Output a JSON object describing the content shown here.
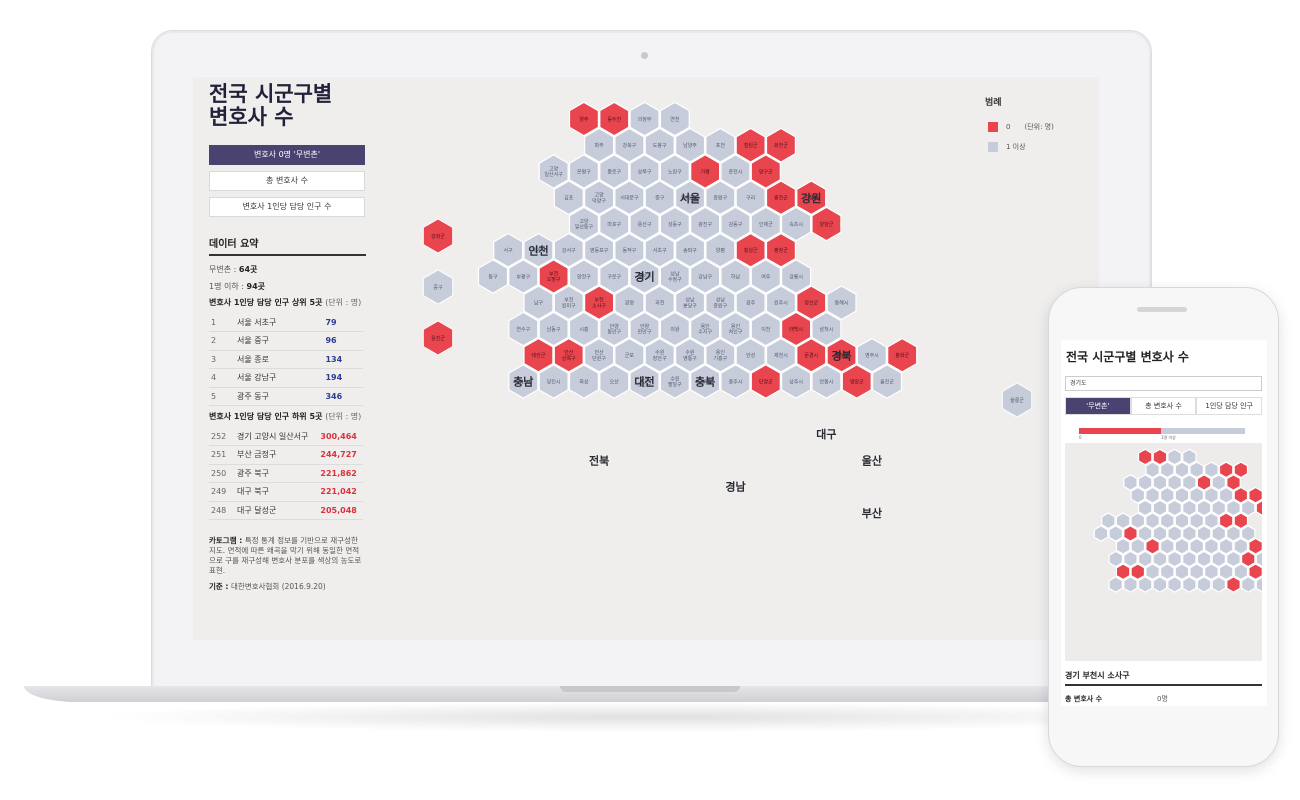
{
  "colors": {
    "zero": "#e8454f",
    "oneplus": "#c7ccdb",
    "accent": "#4a4270"
  },
  "sidebar": {
    "title": "전국 시군구별\n변호사 수",
    "buttons": [
      "변호사 0명 '무변촌'",
      "총 변호사 수",
      "변호사 1인당 담당 인구 수"
    ],
    "summary_title": "데이터 요약",
    "no_lawyer_label": "무변촌 : ",
    "no_lawyer_value": "64곳",
    "one_or_less_label": "1명 이하 : ",
    "one_or_less_value": "94곳",
    "top5_title": "변호사 1인당 담당 인구 상위 5곳",
    "top5_unit": "(단위 : 명)",
    "top5": [
      {
        "rank": "1",
        "name": "서울 서초구",
        "value": "79"
      },
      {
        "rank": "2",
        "name": "서울 중구",
        "value": "96"
      },
      {
        "rank": "3",
        "name": "서울 종로",
        "value": "134"
      },
      {
        "rank": "4",
        "name": "서울 강남구",
        "value": "194"
      },
      {
        "rank": "5",
        "name": "광주 동구",
        "value": "346"
      }
    ],
    "bottom5_title": "변호사 1인당 담당 인구 하위 5곳",
    "bottom5_unit": "(단위 : 명)",
    "bottom5": [
      {
        "rank": "252",
        "name": "경기 고양시 일산서구",
        "value": "300,464"
      },
      {
        "rank": "251",
        "name": "부산 금정구",
        "value": "244,727"
      },
      {
        "rank": "250",
        "name": "광주 북구",
        "value": "221,862"
      },
      {
        "rank": "249",
        "name": "대구 북구",
        "value": "221,042"
      },
      {
        "rank": "248",
        "name": "대구 달성군",
        "value": "205,048"
      }
    ],
    "note_label": "카토그램 : ",
    "note_text": "특정 통계 정보를 기반으로 재구성한 지도. 면적에 따른 왜곡을 막기 위해 동일한 면적으로 구를 재구성해 변호사 분포를 색상의 농도로 표현.",
    "source_label": "기준 : ",
    "source_text": "대한변호사협회 (2016.9.20)"
  },
  "legend": {
    "title": "범례",
    "zero_label": "0",
    "unit": "(단위: 명)",
    "oneplus_label": "1 이상"
  },
  "regions": [
    {
      "name": "서울",
      "col": 6,
      "row": 3
    },
    {
      "name": "인천",
      "col": 1,
      "row": 5
    },
    {
      "name": "경기",
      "col": 5,
      "row": 6
    },
    {
      "name": "강원",
      "col": 10,
      "row": 3
    },
    {
      "name": "충북",
      "col": 7,
      "row": 10
    },
    {
      "name": "충남",
      "col": 1,
      "row": 10
    },
    {
      "name": "대전",
      "col": 5,
      "row": 10
    },
    {
      "name": "경북",
      "col": 11,
      "row": 9
    },
    {
      "name": "대구",
      "col": 11,
      "row": 12
    },
    {
      "name": "울산",
      "col": 12,
      "row": 13
    },
    {
      "name": "전북",
      "col": 3,
      "row": 13
    },
    {
      "name": "경남",
      "col": 8,
      "row": 14
    },
    {
      "name": "부산",
      "col": 12,
      "row": 15
    }
  ],
  "hexes": [
    {
      "n": "양주",
      "c": 3,
      "r": 0,
      "z": 1
    },
    {
      "n": "동두천",
      "c": 4,
      "r": 0,
      "z": 1
    },
    {
      "n": "의정부",
      "c": 5,
      "r": 0,
      "z": 0
    },
    {
      "n": "연천",
      "c": 6,
      "r": 0,
      "z": 0
    },
    {
      "n": "파주",
      "c": 3,
      "r": 1,
      "z": 0
    },
    {
      "n": "강북구",
      "c": 4,
      "r": 1,
      "z": 0
    },
    {
      "n": "도봉구",
      "c": 5,
      "r": 1,
      "z": 0
    },
    {
      "n": "남양주",
      "c": 6,
      "r": 1,
      "z": 0
    },
    {
      "n": "포천",
      "c": 7,
      "r": 1,
      "z": 0
    },
    {
      "n": "철원군",
      "c": 8,
      "r": 1,
      "z": 1
    },
    {
      "n": "화천군",
      "c": 9,
      "r": 1,
      "z": 1
    },
    {
      "n": "고양\n일산서구",
      "c": 2,
      "r": 2,
      "z": 0
    },
    {
      "n": "은평구",
      "c": 3,
      "r": 2,
      "z": 0
    },
    {
      "n": "종로구",
      "c": 4,
      "r": 2,
      "z": 0
    },
    {
      "n": "성북구",
      "c": 5,
      "r": 2,
      "z": 0
    },
    {
      "n": "노원구",
      "c": 6,
      "r": 2,
      "z": 0
    },
    {
      "n": "가평",
      "c": 7,
      "r": 2,
      "z": 1
    },
    {
      "n": "춘천시",
      "c": 8,
      "r": 2,
      "z": 0
    },
    {
      "n": "양구군",
      "c": 9,
      "r": 2,
      "z": 1
    },
    {
      "n": "김포",
      "c": 2,
      "r": 3,
      "z": 0
    },
    {
      "n": "고양\n덕양구",
      "c": 3,
      "r": 3,
      "z": 0
    },
    {
      "n": "서대문구",
      "c": 4,
      "r": 3,
      "z": 0
    },
    {
      "n": "중구",
      "c": 5,
      "r": 3,
      "z": 0
    },
    {
      "n": "동대문구",
      "c": 6,
      "r": 3,
      "z": 0
    },
    {
      "n": "중랑구",
      "c": 7,
      "r": 3,
      "z": 0
    },
    {
      "n": "구리",
      "c": 8,
      "r": 3,
      "z": 0
    },
    {
      "n": "홍천군",
      "c": 9,
      "r": 3,
      "z": 1
    },
    {
      "n": "고성군",
      "c": 10,
      "r": 3,
      "z": 1
    },
    {
      "n": "고양\n일산동구",
      "c": 3,
      "r": 4,
      "z": 0
    },
    {
      "n": "마포구",
      "c": 4,
      "r": 4,
      "z": 0
    },
    {
      "n": "용산구",
      "c": 5,
      "r": 4,
      "z": 0
    },
    {
      "n": "성동구",
      "c": 6,
      "r": 4,
      "z": 0
    },
    {
      "n": "광진구",
      "c": 7,
      "r": 4,
      "z": 0
    },
    {
      "n": "강동구",
      "c": 8,
      "r": 4,
      "z": 0
    },
    {
      "n": "인제군",
      "c": 9,
      "r": 4,
      "z": 0
    },
    {
      "n": "속초시",
      "c": 10,
      "r": 4,
      "z": 0
    },
    {
      "n": "양양군",
      "c": 11,
      "r": 4,
      "z": 1
    },
    {
      "n": "서구",
      "c": 0,
      "r": 5,
      "z": 0
    },
    {
      "n": "계양구",
      "c": 1,
      "r": 5,
      "z": 0
    },
    {
      "n": "강서구",
      "c": 2,
      "r": 5,
      "z": 0
    },
    {
      "n": "영등포구",
      "c": 3,
      "r": 5,
      "z": 0
    },
    {
      "n": "동작구",
      "c": 4,
      "r": 5,
      "z": 0
    },
    {
      "n": "서초구",
      "c": 5,
      "r": 5,
      "z": 0
    },
    {
      "n": "송파구",
      "c": 6,
      "r": 5,
      "z": 0
    },
    {
      "n": "양평",
      "c": 7,
      "r": 5,
      "z": 0
    },
    {
      "n": "횡성군",
      "c": 8,
      "r": 5,
      "z": 1
    },
    {
      "n": "평창군",
      "c": 9,
      "r": 5,
      "z": 1
    },
    {
      "n": "동구",
      "c": 0,
      "r": 6,
      "z": 0
    },
    {
      "n": "부평구",
      "c": 1,
      "r": 6,
      "z": 0
    },
    {
      "n": "부천\n오정구",
      "c": 2,
      "r": 6,
      "z": 1
    },
    {
      "n": "양천구",
      "c": 3,
      "r": 6,
      "z": 0
    },
    {
      "n": "구로구",
      "c": 4,
      "r": 6,
      "z": 0
    },
    {
      "n": "금천구",
      "c": 5,
      "r": 6,
      "z": 0
    },
    {
      "n": "성남\n수정구",
      "c": 6,
      "r": 6,
      "z": 0
    },
    {
      "n": "강남구",
      "c": 7,
      "r": 6,
      "z": 0
    },
    {
      "n": "하남",
      "c": 8,
      "r": 6,
      "z": 0
    },
    {
      "n": "여주",
      "c": 9,
      "r": 6,
      "z": 0
    },
    {
      "n": "강릉시",
      "c": 10,
      "r": 6,
      "z": 0
    },
    {
      "n": "남구",
      "c": 1,
      "r": 7,
      "z": 0
    },
    {
      "n": "부천\n원미구",
      "c": 2,
      "r": 7,
      "z": 0
    },
    {
      "n": "부천\n소사구",
      "c": 3,
      "r": 7,
      "z": 1
    },
    {
      "n": "광명",
      "c": 4,
      "r": 7,
      "z": 0
    },
    {
      "n": "과천",
      "c": 5,
      "r": 7,
      "z": 0
    },
    {
      "n": "성남\n분당구",
      "c": 6,
      "r": 7,
      "z": 0
    },
    {
      "n": "성남\n중원구",
      "c": 7,
      "r": 7,
      "z": 0
    },
    {
      "n": "광주",
      "c": 8,
      "r": 7,
      "z": 0
    },
    {
      "n": "원주시",
      "c": 9,
      "r": 7,
      "z": 0
    },
    {
      "n": "정선군",
      "c": 10,
      "r": 7,
      "z": 1
    },
    {
      "n": "동해시",
      "c": 11,
      "r": 7,
      "z": 0
    },
    {
      "n": "연수구",
      "c": 1,
      "r": 8,
      "z": 0
    },
    {
      "n": "남동구",
      "c": 2,
      "r": 8,
      "z": 0
    },
    {
      "n": "시흥",
      "c": 3,
      "r": 8,
      "z": 0
    },
    {
      "n": "안양\n동안구",
      "c": 4,
      "r": 8,
      "z": 0
    },
    {
      "n": "안양\n만안구",
      "c": 5,
      "r": 8,
      "z": 0
    },
    {
      "n": "의왕",
      "c": 6,
      "r": 8,
      "z": 0
    },
    {
      "n": "용인\n수지구",
      "c": 7,
      "r": 8,
      "z": 0
    },
    {
      "n": "용인\n처인구",
      "c": 8,
      "r": 8,
      "z": 0
    },
    {
      "n": "이천",
      "c": 9,
      "r": 8,
      "z": 0
    },
    {
      "n": "태백시",
      "c": 10,
      "r": 8,
      "z": 1
    },
    {
      "n": "삼척시",
      "c": 11,
      "r": 8,
      "z": 0
    },
    {
      "n": "태안군",
      "c": 1,
      "r": 9,
      "z": 1
    },
    {
      "n": "안산\n상록구",
      "c": 2,
      "r": 9,
      "z": 1
    },
    {
      "n": "안산\n단원구",
      "c": 3,
      "r": 9,
      "z": 0
    },
    {
      "n": "군포",
      "c": 4,
      "r": 9,
      "z": 0
    },
    {
      "n": "수원\n장안구",
      "c": 5,
      "r": 9,
      "z": 0
    },
    {
      "n": "수원\n영통구",
      "c": 6,
      "r": 9,
      "z": 0
    },
    {
      "n": "용인\n기흥구",
      "c": 7,
      "r": 9,
      "z": 0
    },
    {
      "n": "안성",
      "c": 8,
      "r": 9,
      "z": 0
    },
    {
      "n": "제천시",
      "c": 9,
      "r": 9,
      "z": 0
    },
    {
      "n": "문경시",
      "c": 10,
      "r": 9,
      "z": 1
    },
    {
      "n": "예천군",
      "c": 11,
      "r": 9,
      "z": 1
    },
    {
      "n": "영주시",
      "c": 12,
      "r": 9,
      "z": 0
    },
    {
      "n": "봉화군",
      "c": 13,
      "r": 9,
      "z": 1
    },
    {
      "n": "서산시",
      "c": 1,
      "r": 10,
      "z": 0
    },
    {
      "n": "당진시",
      "c": 2,
      "r": 10,
      "z": 0
    },
    {
      "n": "화성",
      "c": 3,
      "r": 10,
      "z": 0
    },
    {
      "n": "오산",
      "c": 4,
      "r": 10,
      "z": 0
    },
    {
      "n": "수원\n권선구",
      "c": 5,
      "r": 10,
      "z": 0
    },
    {
      "n": "수원\n팔달구",
      "c": 6,
      "r": 10,
      "z": 0
    },
    {
      "n": "평택",
      "c": 7,
      "r": 10,
      "z": 0
    },
    {
      "n": "충주시",
      "c": 8,
      "r": 10,
      "z": 0
    },
    {
      "n": "단양군",
      "c": 9,
      "r": 10,
      "z": 1
    },
    {
      "n": "상주시",
      "c": 10,
      "r": 10,
      "z": 0
    },
    {
      "n": "안동시",
      "c": 11,
      "r": 10,
      "z": 0
    },
    {
      "n": "영양군",
      "c": 12,
      "r": 10,
      "z": 1
    },
    {
      "n": "울진군",
      "c": 13,
      "r": 10,
      "z": 0
    }
  ],
  "islands": [
    {
      "n": "강화군",
      "z": 1
    },
    {
      "n": "옹진군",
      "z": 1
    },
    {
      "n": "중구",
      "z": 0
    },
    {
      "n": "울릉군",
      "z": 0
    }
  ],
  "phone": {
    "title": "전국 시군구별 변호사 수",
    "search_value": "경기도",
    "tabs": [
      "'무변촌'",
      "총 변호사 수",
      "1인당 담당 인구"
    ],
    "bar_left_label": "0",
    "bar_right_label": "1명 이상",
    "selected_region": "경기 부천시 소사구",
    "stat_label": "총 변호사 수",
    "stat_value": "0명"
  }
}
